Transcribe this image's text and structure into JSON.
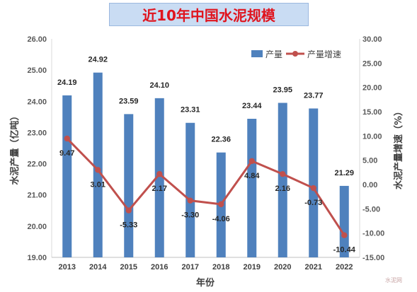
{
  "title": "近10年中国水泥规模",
  "colors": {
    "bar": "#4f81bd",
    "line": "#c0504d",
    "title_bg": "#c9dcf3",
    "title_text": "#e0141e"
  },
  "chart_data": {
    "type": "bar",
    "categories": [
      "2013",
      "2014",
      "2015",
      "2016",
      "2017",
      "2018",
      "2019",
      "2020",
      "2021",
      "2022"
    ],
    "series": [
      {
        "name": "产量",
        "type": "bar",
        "axis": "left",
        "values": [
          24.19,
          24.92,
          23.59,
          24.1,
          23.31,
          22.36,
          23.44,
          23.95,
          23.77,
          21.29
        ],
        "labels": [
          "24.19",
          "24.92",
          "23.59",
          "24.10",
          "23.31",
          "22.36",
          "23.44",
          "23.95",
          "23.77",
          "21.29"
        ]
      },
      {
        "name": "产量增速",
        "type": "line",
        "axis": "right",
        "values": [
          9.47,
          3.01,
          -5.33,
          2.17,
          -3.3,
          -4.06,
          4.84,
          2.16,
          -0.73,
          -10.44
        ],
        "labels": [
          "9.47",
          "3.01",
          "-5.33",
          "2.17",
          "-3.30",
          "-4.06",
          "4.84",
          "2.16",
          "-0.73",
          "-10.44"
        ]
      }
    ],
    "xlabel": "年份",
    "ylabel": "水泥产量（亿吨）",
    "ylabel_right": "水泥产量增速（%）",
    "ylim": [
      19.0,
      26.0
    ],
    "ylim_right": [
      -15.0,
      30.0
    ],
    "yticks": [
      "19.00",
      "20.00",
      "21.00",
      "22.00",
      "23.00",
      "24.00",
      "25.00",
      "26.00"
    ],
    "yticks_right": [
      "-15.00",
      "-10.00",
      "-5.00",
      "0.00",
      "5.00",
      "10.00",
      "15.00",
      "20.00",
      "25.00",
      "30.00"
    ],
    "grid": false,
    "legend_position": "top-right"
  },
  "watermark_text": "水泥网"
}
